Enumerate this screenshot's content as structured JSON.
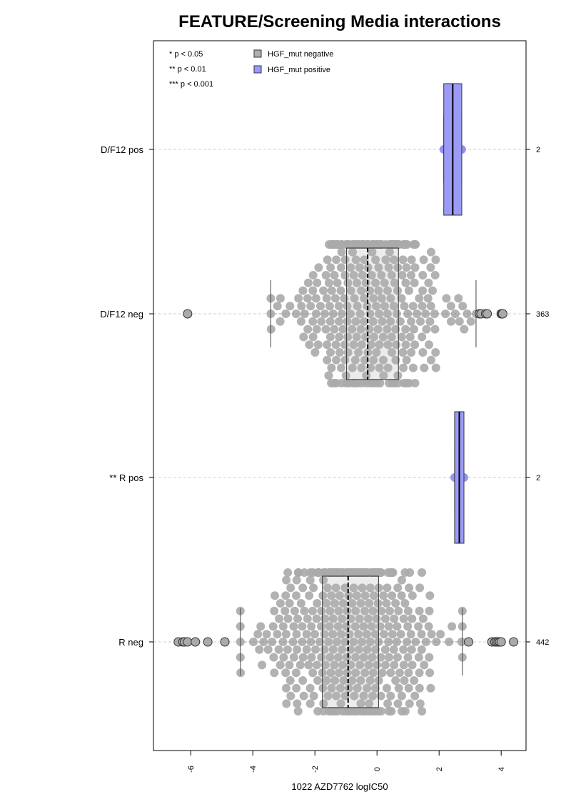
{
  "chart_data": {
    "type": "boxplot",
    "title": "FEATURE/Screening Media interactions",
    "xlabel": "1022 AZD7762 logIC50",
    "ylabel": "",
    "xlim": [
      -7.2,
      4.8
    ],
    "x_ticks": [
      -6,
      -4,
      -2,
      0,
      2,
      4
    ],
    "x_tick_labels": [
      "-6",
      "-4",
      "-2",
      "0",
      "2",
      "4"
    ],
    "grid": "horizontal dashed lines through each group",
    "legend": {
      "placement": "top-left",
      "significance": [
        "* p < 0.05",
        "** p < 0.01",
        "*** p < 0.001"
      ],
      "entries": [
        {
          "label": "HGF_mut negative",
          "color": "#b0b0b0"
        },
        {
          "label": "HGF_mut positive",
          "color": "#9999ff"
        }
      ]
    },
    "colors": {
      "negative_fill": "#b3b3b3",
      "negative_point": "#aaaaaa",
      "positive_fill": "#9b9bf7",
      "positive_point": "#7b7bf2",
      "gridline": "#cfcfcf"
    },
    "groups": [
      {
        "label": "D/F12 pos",
        "count": "2",
        "mutation": "positive",
        "whisker_low": 2.15,
        "q1": 2.15,
        "median": 2.44,
        "q3": 2.73,
        "whisker_high": 2.73,
        "points": [
          2.15,
          2.73
        ],
        "outliers": []
      },
      {
        "label": "D/F12 neg",
        "count": "363",
        "mutation": "negative",
        "whisker_low": -3.42,
        "q1": -0.98,
        "median": -0.3,
        "q3": 0.69,
        "whisker_high": 3.19,
        "center": -0.2,
        "spread": 1.3,
        "n_points": 363,
        "seed": 11,
        "outliers": [
          -6.1,
          3.3,
          3.35,
          3.5,
          3.55,
          4.0,
          4.02,
          4.05
        ]
      },
      {
        "label": "** R pos",
        "count": "2",
        "mutation": "positive",
        "whisker_low": 2.5,
        "q1": 2.5,
        "median": 2.65,
        "q3": 2.8,
        "whisker_high": 2.8,
        "points": [
          2.5,
          2.8
        ],
        "outliers": []
      },
      {
        "label": "R neg",
        "count": "442",
        "mutation": "negative",
        "whisker_low": -4.4,
        "q1": -1.76,
        "median": -0.93,
        "q3": 0.05,
        "whisker_high": 2.75,
        "center": -0.9,
        "spread": 1.4,
        "n_points": 442,
        "seed": 7,
        "outliers": [
          -6.4,
          -6.25,
          -6.2,
          -6.1,
          -5.85,
          -5.45,
          -4.9,
          2.95,
          3.7,
          3.8,
          3.85,
          3.9,
          3.95,
          4.0,
          4.4
        ]
      }
    ]
  }
}
